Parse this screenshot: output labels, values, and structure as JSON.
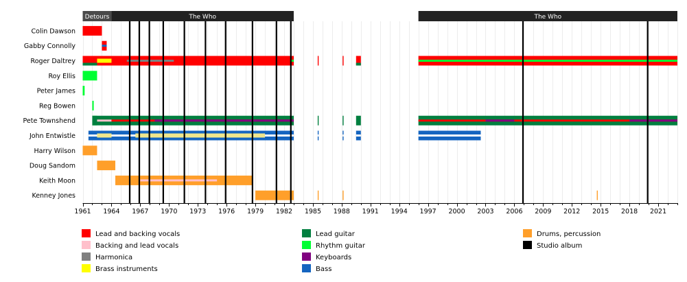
{
  "chart_data": {
    "type": "timeline",
    "x_axis": {
      "range": [
        1961,
        2023
      ],
      "tick_labels": [
        "1961",
        "1964",
        "1967",
        "1970",
        "1973",
        "1976",
        "1979",
        "1982",
        "1985",
        "1988",
        "1991",
        "1994",
        "1997",
        "2000",
        "2003",
        "2006",
        "2009",
        "2012",
        "2015",
        "2018",
        "2021"
      ],
      "grid": true
    },
    "band_labels": [
      {
        "label": "Detours",
        "start": 1961,
        "end": 1964
      },
      {
        "label": "The Who",
        "start": 1964,
        "end": 1983
      },
      {
        "label": "The Who",
        "start": 1996,
        "end": 2023
      }
    ],
    "studio_albums": [
      1965.9,
      1966.9,
      1967.95,
      1969.4,
      1971.6,
      1973.8,
      1975.9,
      1978.7,
      1981.2,
      1982.7,
      2006.9,
      2019.9
    ],
    "members": [
      {
        "name": "Colin Dawson",
        "roles": [
          {
            "role": "Lead and backing vocals",
            "start": 1961,
            "end": 1963
          }
        ]
      },
      {
        "name": "Gabby Connolly",
        "roles": [
          {
            "role": "Lead and backing vocals",
            "start": 1963,
            "end": 1963.5
          },
          {
            "role": "Bass",
            "start": 1963,
            "end": 1963.5
          }
        ]
      },
      {
        "name": "Roger Daltrey",
        "roles": [
          {
            "role": "Lead and backing vocals",
            "start": 1961,
            "end": 1983
          },
          {
            "role": "Lead and backing vocals",
            "start": 1985.5,
            "end": 1985.6
          },
          {
            "role": "Lead and backing vocals",
            "start": 1988.1,
            "end": 1988.2
          },
          {
            "role": "Lead and backing vocals",
            "start": 1989.5,
            "end": 1990
          },
          {
            "role": "Lead and backing vocals",
            "start": 1996,
            "end": 2023
          },
          {
            "role": "Lead guitar",
            "start": 1961,
            "end": 1962.5
          },
          {
            "role": "Lead guitar",
            "start": 1989.5,
            "end": 1990
          },
          {
            "role": "Rhythm guitar",
            "start": 1982.7,
            "end": 1983
          },
          {
            "role": "Rhythm guitar",
            "start": 1996,
            "end": 2023
          },
          {
            "role": "Brass instruments",
            "start": 1962.5,
            "end": 1964
          },
          {
            "role": "Harmonica",
            "start": 1965.6,
            "end": 1970.5
          }
        ]
      },
      {
        "name": "Roy Ellis",
        "roles": [
          {
            "role": "Rhythm guitar",
            "start": 1961,
            "end": 1962.5
          }
        ]
      },
      {
        "name": "Peter James",
        "roles": [
          {
            "role": "Rhythm guitar",
            "start": 1961,
            "end": 1961.2
          }
        ]
      },
      {
        "name": "Reg Bowen",
        "roles": [
          {
            "role": "Rhythm guitar",
            "start": 1962,
            "end": 1962.15
          }
        ]
      },
      {
        "name": "Pete Townshend",
        "roles": [
          {
            "role": "Rhythm guitar",
            "start": 1962,
            "end": 1962.5
          },
          {
            "role": "Lead guitar",
            "start": 1962,
            "end": 1983
          },
          {
            "role": "Lead guitar",
            "start": 1985.5,
            "end": 1985.6
          },
          {
            "role": "Lead guitar",
            "start": 1988.1,
            "end": 1988.2
          },
          {
            "role": "Lead guitar",
            "start": 1989.5,
            "end": 1990
          },
          {
            "role": "Lead guitar",
            "start": 1996,
            "end": 2023
          },
          {
            "role": "Backing and lead vocals",
            "start": 1962.5,
            "end": 1964
          },
          {
            "role": "Lead and backing vocals",
            "start": 1964,
            "end": 1983
          },
          {
            "role": "Lead and backing vocals",
            "start": 1996,
            "end": 2023
          },
          {
            "role": "Keyboards",
            "start": 1968.5,
            "end": 1983
          },
          {
            "role": "Keyboards",
            "start": 2003,
            "end": 2006
          },
          {
            "role": "Keyboards",
            "start": 2018,
            "end": 2023
          }
        ]
      },
      {
        "name": "John Entwistle",
        "roles": [
          {
            "role": "Bass",
            "start": 1961.6,
            "end": 1983
          },
          {
            "role": "Bass",
            "start": 1985.5,
            "end": 1985.6
          },
          {
            "role": "Bass",
            "start": 1988.1,
            "end": 1988.2
          },
          {
            "role": "Bass",
            "start": 1989.5,
            "end": 1990
          },
          {
            "role": "Bass",
            "start": 1996,
            "end": 2002.5
          },
          {
            "role": "Brass instruments",
            "start": 1962.5,
            "end": 1964
          },
          {
            "role": "Brass instruments",
            "start": 1966.5,
            "end": 1980
          },
          {
            "role": "Backing and lead vocals",
            "start": 1962.5,
            "end": 1966.5
          }
        ]
      },
      {
        "name": "Harry Wilson",
        "roles": [
          {
            "role": "Drums, percussion",
            "start": 1961,
            "end": 1962.5
          }
        ]
      },
      {
        "name": "Doug Sandom",
        "roles": [
          {
            "role": "Drums, percussion",
            "start": 1962.5,
            "end": 1964.4
          }
        ]
      },
      {
        "name": "Keith Moon",
        "roles": [
          {
            "role": "Drums, percussion",
            "start": 1964.4,
            "end": 1978.7
          },
          {
            "role": "Backing and lead vocals",
            "start": 1967,
            "end": 1975
          }
        ]
      },
      {
        "name": "Kenney Jones",
        "roles": [
          {
            "role": "Drums, percussion",
            "start": 1979,
            "end": 1983
          },
          {
            "role": "Drums, percussion",
            "start": 1985.5,
            "end": 1985.6
          },
          {
            "role": "Drums, percussion",
            "start": 1988.1,
            "end": 1988.2
          },
          {
            "role": "Drums, percussion",
            "start": 2014.6,
            "end": 2014.7
          }
        ]
      }
    ],
    "legend": [
      {
        "label": "Lead and backing vocals",
        "color": "#ff0000"
      },
      {
        "label": "Backing and lead vocals",
        "color": "#ffc0cb"
      },
      {
        "label": "Harmonica",
        "color": "#808080"
      },
      {
        "label": "Brass instruments",
        "color": "#ffff00"
      },
      {
        "label": "Lead guitar",
        "color": "#007f3f"
      },
      {
        "label": "Rhythm guitar",
        "color": "#00ff33"
      },
      {
        "label": "Keyboards",
        "color": "#800080"
      },
      {
        "label": "Bass",
        "color": "#1565c0"
      },
      {
        "label": "Drums, percussion",
        "color": "#ff9f2a"
      },
      {
        "label": "Studio album",
        "color": "#000000"
      }
    ],
    "legend_placement": "bottom",
    "band_color": "#222222"
  }
}
